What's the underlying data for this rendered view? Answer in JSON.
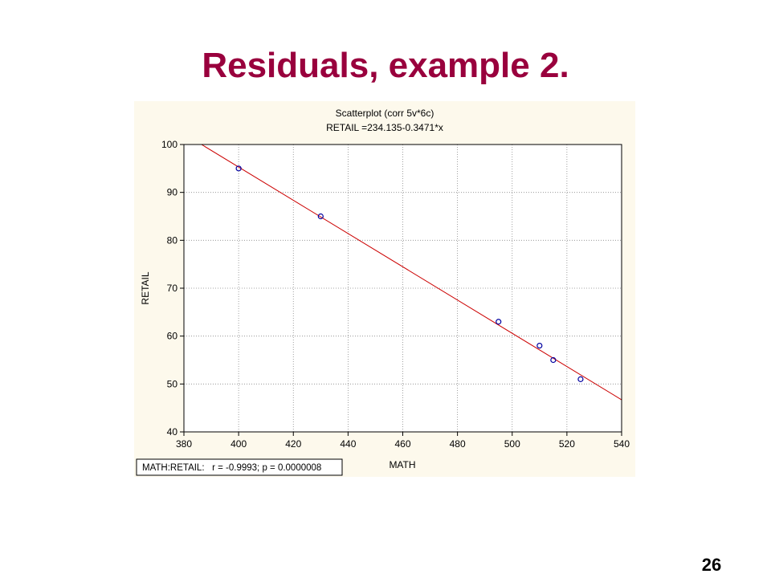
{
  "slide": {
    "title": "Residuals, example 2.",
    "page_number": "26"
  },
  "chart_data": {
    "type": "scatter",
    "title": "Scatterplot (corr 5v*6c)",
    "subtitle": "RETAIL =234.135-0.3471*x",
    "xlabel": "MATH",
    "ylabel": "RETAIL",
    "xlim": [
      380,
      540
    ],
    "ylim": [
      40,
      100
    ],
    "xticks": [
      380,
      400,
      420,
      440,
      460,
      480,
      500,
      520,
      540
    ],
    "yticks": [
      40,
      50,
      60,
      70,
      80,
      90,
      100
    ],
    "grid": true,
    "points": [
      {
        "x": 400,
        "y": 95
      },
      {
        "x": 430,
        "y": 85
      },
      {
        "x": 495,
        "y": 63
      },
      {
        "x": 510,
        "y": 58
      },
      {
        "x": 515,
        "y": 55
      },
      {
        "x": 525,
        "y": 51
      }
    ],
    "fit_line": {
      "intercept": 234.135,
      "slope": -0.3471
    },
    "legend_text": "MATH:RETAIL:   r = -0.9993; p = 0.0000008",
    "legend_placement": "bottom-left",
    "colors": {
      "background": "#fdf9ec",
      "plot_background": "#ffffff",
      "points": "#0000a0",
      "fit_line": "#cc0000",
      "grid": "#888888"
    }
  }
}
